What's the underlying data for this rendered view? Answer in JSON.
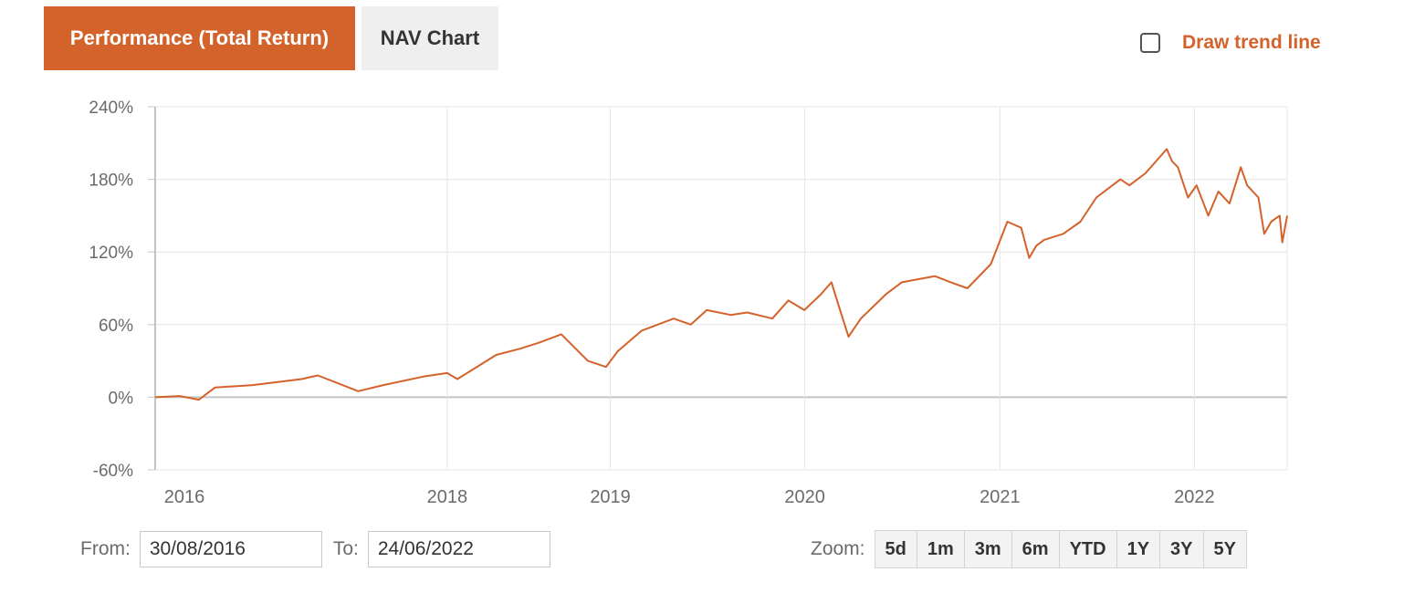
{
  "tabs": {
    "performance": "Performance (Total Return)",
    "nav": "NAV Chart"
  },
  "trend_line": {
    "label": "Draw trend line",
    "checked": false
  },
  "range": {
    "from_label": "From:",
    "from_value": "30/08/2016",
    "to_label": "To:",
    "to_value": "24/06/2022"
  },
  "zoom": {
    "label": "Zoom:",
    "buttons": [
      "5d",
      "1m",
      "3m",
      "6m",
      "YTD",
      "1Y",
      "3Y",
      "5Y"
    ]
  },
  "colors": {
    "accent": "#d4622b",
    "line": "#d4622b",
    "grid": "#e6e6e6",
    "axis_text": "#6b6b6b"
  },
  "chart_data": {
    "type": "line",
    "title": "",
    "xlabel": "",
    "ylabel": "",
    "ylim": [
      -60,
      240
    ],
    "y_ticks": [
      -60,
      0,
      60,
      120,
      180,
      240
    ],
    "y_tick_labels": [
      "-60%",
      "0%",
      "60%",
      "120%",
      "180%",
      "240%"
    ],
    "x_range": [
      "2016-08-30",
      "2022-06-24"
    ],
    "x_ticks": [
      {
        "label": "2016",
        "date": "2016-08-30"
      },
      {
        "label": "2018",
        "date": "2018-03-01"
      },
      {
        "label": "2019",
        "date": "2019-01-01"
      },
      {
        "label": "2020",
        "date": "2020-01-01"
      },
      {
        "label": "2021",
        "date": "2021-01-01"
      },
      {
        "label": "2022",
        "date": "2022-01-01"
      }
    ],
    "grid": true,
    "legend": "none",
    "series": [
      {
        "x": [
          "2016-08-30",
          "2016-10-15",
          "2016-11-20",
          "2016-12-20",
          "2017-03-01",
          "2017-06-01",
          "2017-07-01",
          "2017-09-15",
          "2017-11-01",
          "2018-01-15",
          "2018-03-01",
          "2018-03-20",
          "2018-06-01",
          "2018-07-15",
          "2018-08-20",
          "2018-10-01",
          "2018-11-20",
          "2018-12-24",
          "2019-01-15",
          "2019-03-01",
          "2019-04-30",
          "2019-06-01",
          "2019-07-01",
          "2019-08-15",
          "2019-09-15",
          "2019-11-01",
          "2019-12-01",
          "2019-12-31",
          "2020-01-31",
          "2020-02-20",
          "2020-03-05",
          "2020-03-23",
          "2020-04-15",
          "2020-06-01",
          "2020-07-01",
          "2020-09-01",
          "2020-10-01",
          "2020-11-01",
          "2020-12-15",
          "2021-01-15",
          "2021-02-10",
          "2021-02-25",
          "2021-03-10",
          "2021-03-25",
          "2021-04-30",
          "2021-06-01",
          "2021-07-01",
          "2021-08-15",
          "2021-09-01",
          "2021-10-01",
          "2021-11-10",
          "2021-11-20",
          "2021-12-01",
          "2021-12-20",
          "2022-01-05",
          "2022-01-27",
          "2022-02-15",
          "2022-03-08",
          "2022-03-29",
          "2022-04-10",
          "2022-05-01",
          "2022-05-12",
          "2022-05-25",
          "2022-06-10",
          "2022-06-15",
          "2022-06-24"
        ],
        "values": [
          0,
          1,
          -2,
          8,
          10,
          15,
          18,
          5,
          10,
          17,
          20,
          15,
          35,
          40,
          45,
          52,
          30,
          25,
          38,
          55,
          65,
          60,
          72,
          68,
          70,
          65,
          80,
          72,
          85,
          95,
          75,
          50,
          65,
          85,
          95,
          100,
          95,
          90,
          110,
          145,
          140,
          115,
          125,
          130,
          135,
          145,
          165,
          180,
          175,
          185,
          205,
          195,
          190,
          165,
          175,
          150,
          170,
          160,
          190,
          175,
          165,
          135,
          145,
          150,
          128,
          150
        ]
      }
    ]
  }
}
